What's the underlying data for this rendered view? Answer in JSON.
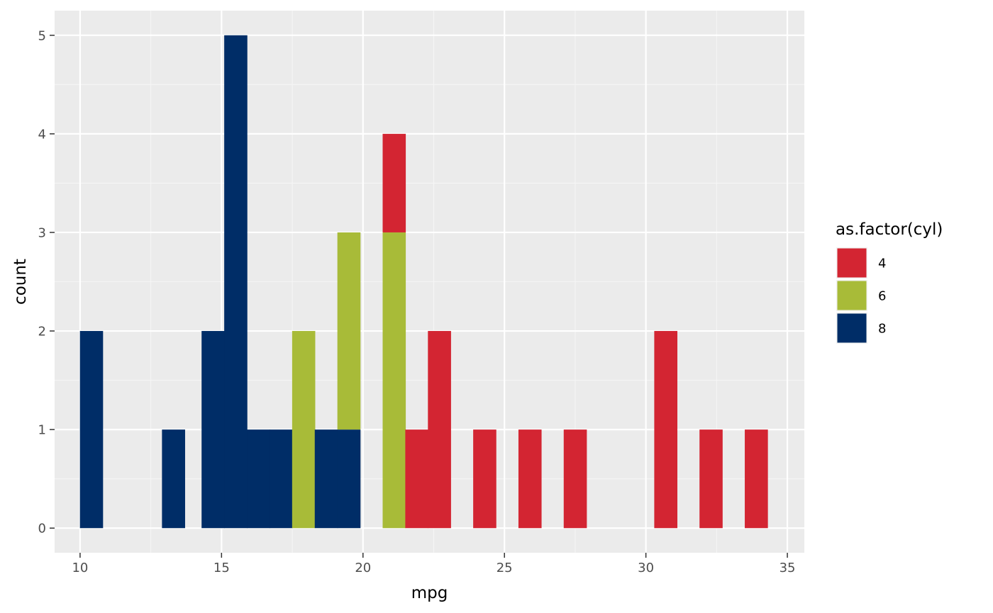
{
  "chart_data": {
    "type": "bar",
    "subtype": "stacked-histogram",
    "xlabel": "mpg",
    "ylabel": "count",
    "xlim": [
      9.1,
      35.6
    ],
    "ylim": [
      -0.25,
      5.25
    ],
    "x_ticks": [
      10,
      15,
      20,
      25,
      30,
      35
    ],
    "y_ticks": [
      0,
      1,
      2,
      3,
      4,
      5
    ],
    "grid": true,
    "bin_width": 0.81,
    "legend": {
      "title": "as.factor(cyl)",
      "position": "right",
      "entries": [
        {
          "label": "4",
          "color": "#D32532"
        },
        {
          "label": "6",
          "color": "#A8BB38"
        },
        {
          "label": "8",
          "color": "#002D67"
        }
      ]
    },
    "stack_order": [
      "8",
      "6",
      "4"
    ],
    "bins": [
      {
        "center": 10.4,
        "counts": {
          "4": 0,
          "6": 0,
          "8": 2
        }
      },
      {
        "center": 13.3,
        "counts": {
          "4": 0,
          "6": 0,
          "8": 1
        }
      },
      {
        "center": 14.7,
        "counts": {
          "4": 0,
          "6": 0,
          "8": 2
        }
      },
      {
        "center": 15.5,
        "counts": {
          "4": 0,
          "6": 0,
          "8": 5
        }
      },
      {
        "center": 16.3,
        "counts": {
          "4": 0,
          "6": 0,
          "8": 1
        }
      },
      {
        "center": 17.1,
        "counts": {
          "4": 0,
          "6": 0,
          "8": 1
        }
      },
      {
        "center": 17.9,
        "counts": {
          "4": 0,
          "6": 2,
          "8": 0
        }
      },
      {
        "center": 18.7,
        "counts": {
          "4": 0,
          "6": 0,
          "8": 1
        }
      },
      {
        "center": 19.5,
        "counts": {
          "4": 0,
          "6": 2,
          "8": 1
        }
      },
      {
        "center": 21.1,
        "counts": {
          "4": 1,
          "6": 3,
          "8": 0
        }
      },
      {
        "center": 21.9,
        "counts": {
          "4": 1,
          "6": 0,
          "8": 0
        }
      },
      {
        "center": 22.7,
        "counts": {
          "4": 2,
          "6": 0,
          "8": 0
        }
      },
      {
        "center": 24.3,
        "counts": {
          "4": 1,
          "6": 0,
          "8": 0
        }
      },
      {
        "center": 25.9,
        "counts": {
          "4": 1,
          "6": 0,
          "8": 0
        }
      },
      {
        "center": 27.5,
        "counts": {
          "4": 1,
          "6": 0,
          "8": 0
        }
      },
      {
        "center": 30.7,
        "counts": {
          "4": 2,
          "6": 0,
          "8": 0
        }
      },
      {
        "center": 32.3,
        "counts": {
          "4": 1,
          "6": 0,
          "8": 0
        }
      },
      {
        "center": 33.9,
        "counts": {
          "4": 1,
          "6": 0,
          "8": 0
        }
      }
    ]
  },
  "colors": {
    "panel_background": "#EBEBEB",
    "grid_major": "#FFFFFF",
    "grid_minor": "#F5F5F5",
    "tick_text": "#4D4D4D",
    "tick_mark": "#333333"
  }
}
